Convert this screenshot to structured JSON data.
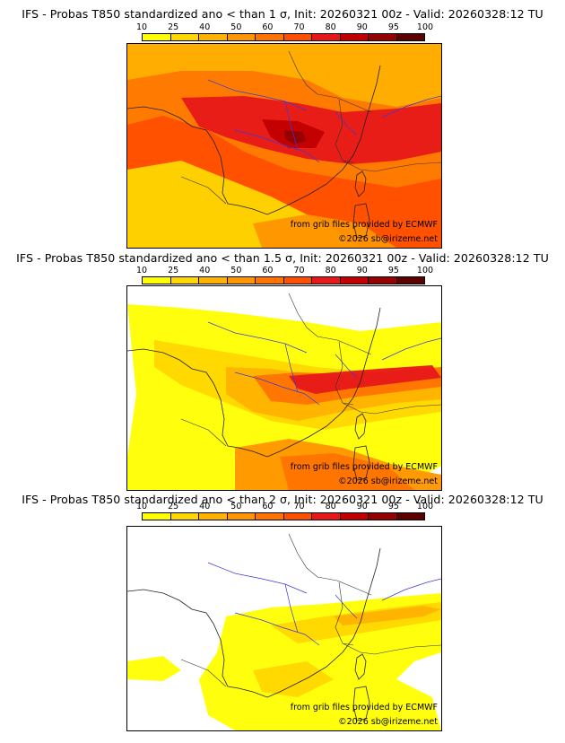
{
  "scale": {
    "ticks": [
      "10",
      "25",
      "40",
      "50",
      "60",
      "70",
      "80",
      "90",
      "95",
      "100"
    ],
    "colors": [
      "#ffff00",
      "#ffd700",
      "#ffb300",
      "#ff9500",
      "#ff7300",
      "#ff4f00",
      "#e81818",
      "#c20000",
      "#950000",
      "#5c0000"
    ]
  },
  "panels": [
    {
      "title": "IFS - Probas T850  standardized ano < than 1 σ, Init: 20260321 00z - Valid: 20260328:12 TU",
      "credit_source": "from grib files provided by ECMWF",
      "credit_copyright": "©2026 sb@irizeme.net",
      "level": "high"
    },
    {
      "title": "IFS - Probas T850  standardized ano < than 1.5 σ, Init: 20260321 00z - Valid: 20260328:12 TU",
      "credit_source": "from grib files provided by ECMWF",
      "credit_copyright": "©2026 sb@irizeme.net",
      "level": "mid"
    },
    {
      "title": "IFS - Probas T850  standardized ano < than 2 σ, Init: 20260321 00z - Valid: 20260328:12 TU",
      "credit_source": "from grib files provided by ECMWF",
      "credit_copyright": "©2026 sb@irizeme.net",
      "level": "low"
    }
  ]
}
